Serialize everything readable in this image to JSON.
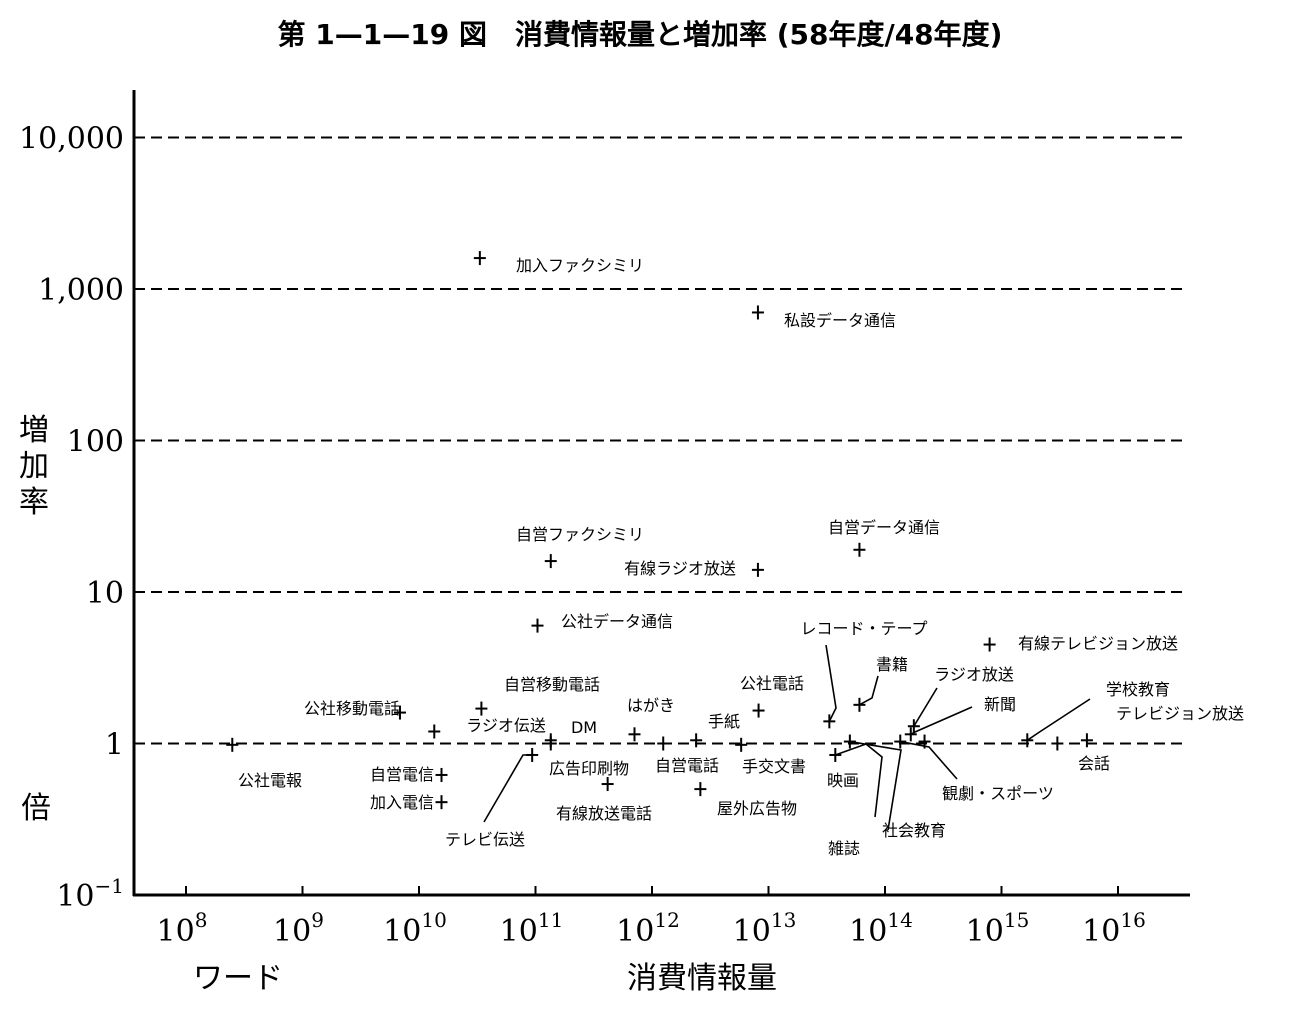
{
  "chart_data": {
    "type": "scatter",
    "title": "第 1—1—19 図　消費情報量と増加率 (58年度/48年度)",
    "xlabel": "消費情報量",
    "x_unit": "ワード",
    "ylabel_top": "増加率",
    "ylabel_unit": "倍",
    "x_scale": "log",
    "y_scale": "log",
    "xlim": [
      10000000.0,
      1e+17
    ],
    "ylim": [
      0.1,
      10000
    ],
    "x_ticks": [
      {
        "base": "10",
        "exp": "8"
      },
      {
        "base": "10",
        "exp": "9"
      },
      {
        "base": "10",
        "exp": "10"
      },
      {
        "base": "10",
        "exp": "11"
      },
      {
        "base": "10",
        "exp": "12"
      },
      {
        "base": "10",
        "exp": "13"
      },
      {
        "base": "10",
        "exp": "14"
      },
      {
        "base": "10",
        "exp": "15"
      },
      {
        "base": "10",
        "exp": "16"
      }
    ],
    "y_ticks": [
      {
        "text": "10,000"
      },
      {
        "text": "1,000"
      },
      {
        "text": "100"
      },
      {
        "text": "10"
      },
      {
        "text": "1"
      },
      {
        "base": "10",
        "exp": "−1"
      }
    ],
    "grid": "dashed horizontal at 1, 10, 100, 1000, 10000",
    "points": [
      {
        "name": "加入ファクシミリ",
        "x": 32000000000.0,
        "y": 1600
      },
      {
        "name": "私設データ通信",
        "x": 7800000000000.0,
        "y": 700
      },
      {
        "name": "自営ファクシミリ",
        "x": 130000000000.0,
        "y": 16
      },
      {
        "name": "有線ラジオ放送",
        "x": 7800000000000.0,
        "y": 14
      },
      {
        "name": "自営データ通信",
        "x": 58000000000000.0,
        "y": 19
      },
      {
        "name": "公社データ通信",
        "x": 100000000000.0,
        "y": 6
      },
      {
        "name": "有線テレビジョン放送",
        "x": 760000000000000.0,
        "y": 4.5
      },
      {
        "name": "レコード・テープ",
        "x": 32000000000000.0,
        "y": 1.4
      },
      {
        "name": "書籍",
        "x": 58000000000000.0,
        "y": 1.8
      },
      {
        "name": "ラジオ放送",
        "x": 170000000000000.0,
        "y": 1.3
      },
      {
        "name": "新聞",
        "x": 160000000000000.0,
        "y": 1.15
      },
      {
        "name": "学校教育",
        "x": 1600000000000000.0,
        "y": 1.05
      },
      {
        "name": "テレビジョン放送",
        "x": 5200000000000000.0,
        "y": 1.05
      },
      {
        "name": "会話",
        "x": 2900000000000000.0,
        "y": 1.0
      },
      {
        "name": "公社移動電話",
        "x": 6600000000.0,
        "y": 1.6
      },
      {
        "name": "自営移動電話",
        "x": 33000000000.0,
        "y": 1.7
      },
      {
        "name": "ラジオ伝送",
        "x": 13000000000.0,
        "y": 1.2
      },
      {
        "name": "DM",
        "x": 130000000000.0,
        "y": 1.05
      },
      {
        "name": "はがき",
        "x": 680000000000.0,
        "y": 1.15
      },
      {
        "name": "手紙",
        "x": 2300000000000.0,
        "y": 1.05
      },
      {
        "name": "公社電話",
        "x": 7900000000000.0,
        "y": 1.65
      },
      {
        "name": "公社電報",
        "x": 240000000.0,
        "y": 0.98
      },
      {
        "name": "自営電信",
        "x": 15000000000.0,
        "y": 0.62
      },
      {
        "name": "加入電信",
        "x": 15000000000.0,
        "y": 0.41
      },
      {
        "name": "テレビ伝送",
        "x": 90000000000.0,
        "y": 0.84
      },
      {
        "name": "広告印刷物",
        "x": 130000000000.0,
        "y": 1.0
      },
      {
        "name": "有線放送電話",
        "x": 400000000000.0,
        "y": 0.54
      },
      {
        "name": "自営電話",
        "x": 1200000000000.0,
        "y": 1.0
      },
      {
        "name": "屋外広告物",
        "x": 2500000000000.0,
        "y": 0.5
      },
      {
        "name": "手交文書",
        "x": 5600000000000.0,
        "y": 0.98
      },
      {
        "name": "映画",
        "x": 36000000000000.0,
        "y": 0.84
      },
      {
        "name": "雑誌",
        "x": 48000000000000.0,
        "y": 1.03
      },
      {
        "name": "社会教育",
        "x": 130000000000000.0,
        "y": 1.03
      },
      {
        "name": "観劇・スポーツ",
        "x": 210000000000000.0,
        "y": 1.03
      }
    ]
  }
}
